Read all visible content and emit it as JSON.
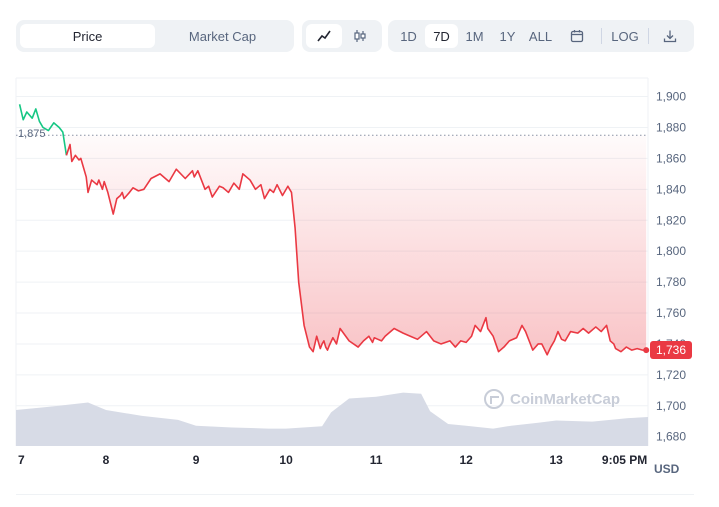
{
  "toolbar": {
    "metric_tabs": [
      "Price",
      "Market Cap"
    ],
    "metric_selected": "Price",
    "chart_type_icons": [
      "line-chart-icon",
      "candlestick-icon"
    ],
    "chart_type_selected": "line-chart-icon",
    "ranges": [
      "1D",
      "7D",
      "1M",
      "1Y",
      "ALL"
    ],
    "range_selected": "7D",
    "calendar_icon": "calendar-icon",
    "log_label": "LOG",
    "download_icon": "download-icon"
  },
  "watermark": "CoinMarketCap",
  "currency": "USD",
  "last_price_label": "1,736",
  "reference_price_label": "1,875",
  "colors": {
    "up": "#16c784",
    "down": "#ea3943",
    "volume": "#d7dbe6",
    "grid": "#eff2f5"
  },
  "chart_data": {
    "type": "area",
    "title": "",
    "xlabel": "",
    "ylabel": "USD",
    "x_tick_labels": [
      "7",
      "8",
      "9",
      "10",
      "11",
      "12",
      "13",
      "9:05 PM"
    ],
    "y_tick_labels": [
      "1,680",
      "1,700",
      "1,720",
      "1,740",
      "1,760",
      "1,780",
      "1,800",
      "1,820",
      "1,840",
      "1,860",
      "1,880",
      "1,900"
    ],
    "ylim": [
      1674,
      1912
    ],
    "xlim": [
      7.0,
      14.02
    ],
    "reference_price": 1875,
    "last_price": 1736,
    "grid": true,
    "series": [
      {
        "x": [
          7.04,
          7.08,
          7.12,
          7.18,
          7.22,
          7.26,
          7.3,
          7.36,
          7.42,
          7.48,
          7.52,
          7.56,
          7.6,
          7.62,
          7.66,
          7.7,
          7.72,
          7.78,
          7.8,
          7.84,
          7.9,
          7.92,
          7.96,
          7.98,
          8.02,
          8.08,
          8.12,
          8.16,
          8.18,
          8.2,
          8.26,
          8.3,
          8.36,
          8.42,
          8.5,
          8.6,
          8.7,
          8.78,
          8.88,
          8.96,
          8.98,
          9.02,
          9.1,
          9.14,
          9.18,
          9.26,
          9.3,
          9.36,
          9.42,
          9.48,
          9.52,
          9.6,
          9.66,
          9.72,
          9.76,
          9.82,
          9.86,
          9.9,
          9.96,
          10.02,
          10.06,
          10.1,
          10.14,
          10.2,
          10.26,
          10.3,
          10.34,
          10.38,
          10.4,
          10.42,
          10.44,
          10.46,
          10.48,
          10.52,
          10.56,
          10.6,
          10.7,
          10.8,
          10.86,
          10.92,
          10.96,
          10.98,
          11.02,
          11.06,
          11.1,
          11.2,
          11.3,
          11.38,
          11.46,
          11.56,
          11.64,
          11.72,
          11.82,
          11.88,
          11.94,
          12.0,
          12.06,
          12.1,
          12.16,
          12.22,
          12.24,
          12.3,
          12.36,
          12.42,
          12.48,
          12.56,
          12.62,
          12.66,
          12.7,
          12.74,
          12.8,
          12.84,
          12.9,
          12.94,
          12.98,
          13.02,
          13.06,
          13.1,
          13.16,
          13.24,
          13.3,
          13.36,
          13.44,
          13.5,
          13.56,
          13.6,
          13.64,
          13.66,
          13.72,
          13.78,
          13.84,
          13.9,
          13.96,
          14.0
        ],
        "y": [
          1895,
          1885,
          1890,
          1886,
          1892,
          1884,
          1880,
          1878,
          1883,
          1880,
          1877,
          1862,
          1869,
          1858,
          1862,
          1859,
          1860,
          1848,
          1838,
          1846,
          1843,
          1846,
          1840,
          1845,
          1838,
          1824,
          1834,
          1836,
          1838,
          1834,
          1838,
          1841,
          1839,
          1840,
          1847,
          1850,
          1845,
          1853,
          1847,
          1852,
          1848,
          1852,
          1840,
          1842,
          1835,
          1842,
          1841,
          1838,
          1844,
          1840,
          1850,
          1846,
          1840,
          1843,
          1834,
          1840,
          1838,
          1843,
          1836,
          1842,
          1838,
          1815,
          1780,
          1752,
          1738,
          1735,
          1745,
          1737,
          1740,
          1742,
          1738,
          1736,
          1739,
          1744,
          1740,
          1750,
          1742,
          1738,
          1742,
          1745,
          1741,
          1744,
          1743,
          1742,
          1745,
          1750,
          1747,
          1745,
          1743,
          1748,
          1742,
          1740,
          1742,
          1738,
          1742,
          1741,
          1745,
          1752,
          1748,
          1757,
          1750,
          1745,
          1735,
          1738,
          1742,
          1744,
          1752,
          1748,
          1742,
          1736,
          1740,
          1740,
          1733,
          1738,
          1742,
          1748,
          1743,
          1742,
          1748,
          1747,
          1750,
          1747,
          1751,
          1748,
          1752,
          1742,
          1740,
          1737,
          1735,
          1738,
          1736,
          1737,
          1736,
          1736
        ]
      }
    ],
    "volume_series": [
      {
        "x": [
          7.0,
          7.4,
          7.8,
          8.0,
          8.4,
          8.8,
          9.0,
          9.4,
          9.8,
          10.0,
          10.4,
          10.5,
          10.7,
          11.0,
          11.3,
          11.5,
          11.6,
          11.8,
          12.0,
          12.3,
          12.5,
          12.8,
          13.0,
          13.4,
          13.8,
          14.02
        ],
        "y": [
          0.62,
          0.68,
          0.75,
          0.62,
          0.52,
          0.45,
          0.35,
          0.32,
          0.3,
          0.3,
          0.34,
          0.58,
          0.82,
          0.85,
          0.92,
          0.9,
          0.6,
          0.38,
          0.35,
          0.3,
          0.35,
          0.4,
          0.44,
          0.42,
          0.48,
          0.5
        ]
      }
    ]
  }
}
